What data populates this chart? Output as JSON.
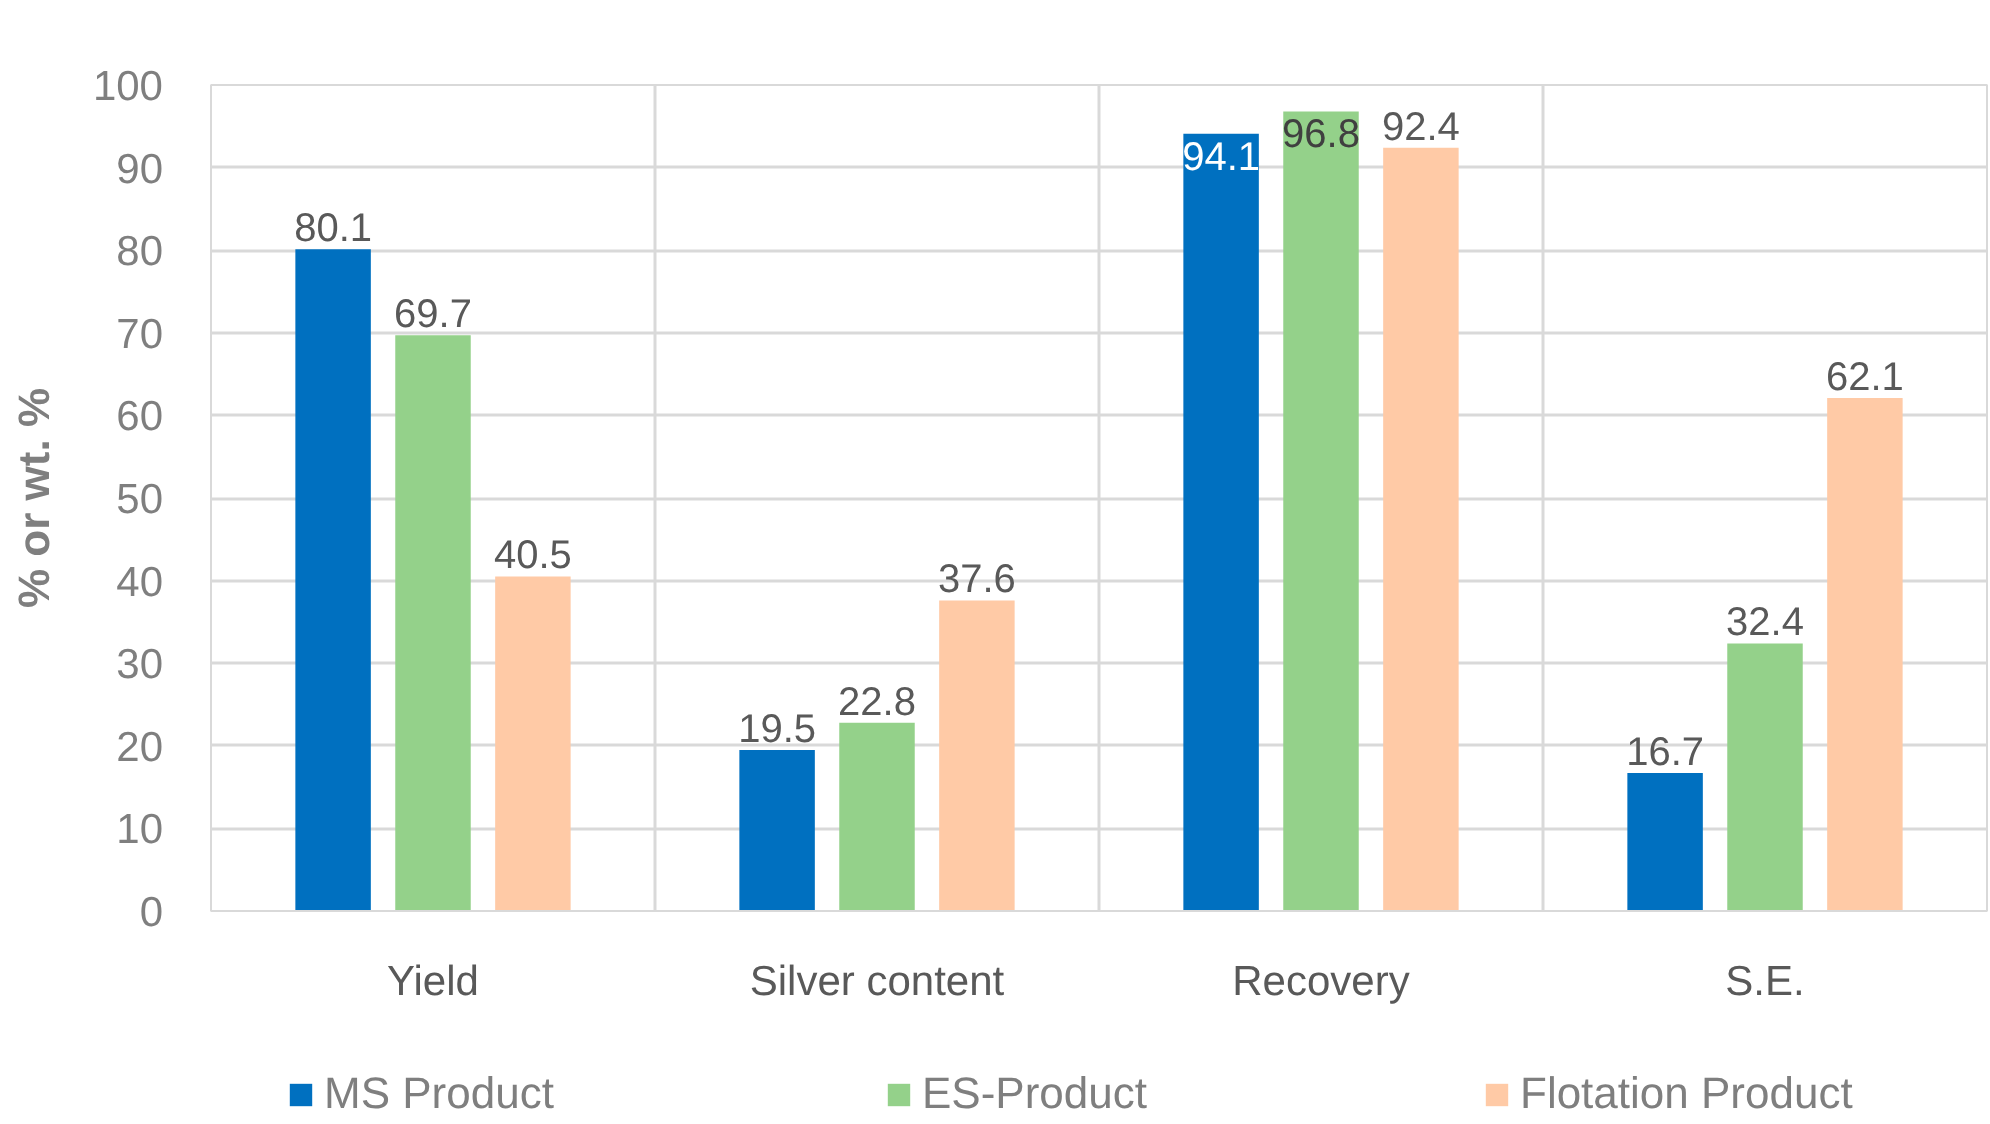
{
  "chart_data": {
    "type": "bar",
    "ylabel": "% or wt. %",
    "categories": [
      "Yield",
      "Silver content",
      "Recovery",
      "S.E."
    ],
    "series": [
      {
        "name": "MS Product",
        "color": "#0070c0",
        "values": [
          80.1,
          19.5,
          94.1,
          16.7
        ]
      },
      {
        "name": "ES-Product",
        "color": "#94d18a",
        "values": [
          69.7,
          22.8,
          96.8,
          32.4
        ]
      },
      {
        "name": "Flotation Product",
        "color": "#ffcaa6",
        "values": [
          40.5,
          37.6,
          92.4,
          62.1
        ]
      }
    ],
    "ylim": [
      0,
      100
    ],
    "yticks": [
      0,
      10,
      20,
      30,
      40,
      50,
      60,
      70,
      80,
      90,
      100
    ],
    "grid": true,
    "legend": "bottom",
    "data_labels": true
  }
}
